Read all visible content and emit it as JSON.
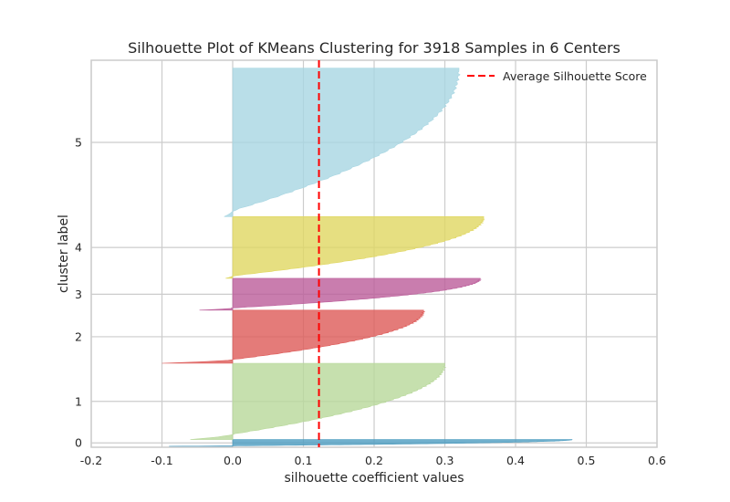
{
  "chart_data": {
    "type": "area",
    "title": "Silhouette Plot of KMeans Clustering for 3918 Samples in 6 Centers",
    "xlabel": "silhouette coefficient values",
    "ylabel": "cluster label",
    "xlim": [
      -0.2,
      0.6
    ],
    "ylim": [
      0,
      4010
    ],
    "x_ticks": [
      "-0.2",
      "-0.1",
      "0.0",
      "0.1",
      "0.2",
      "0.3",
      "0.4",
      "0.5",
      "0.6"
    ],
    "x_tick_values": [
      -0.2,
      -0.1,
      0.0,
      0.1,
      0.2,
      0.3,
      0.4,
      0.5,
      0.6
    ],
    "y_ticks": [
      "0",
      "1",
      "2",
      "3",
      "4",
      "5"
    ],
    "grid": true,
    "legend_position": "top-right",
    "average_silhouette_score": 0.122,
    "average_line_label": "Average Silhouette Score",
    "average_line_color": "#ff0000",
    "clusters": [
      {
        "label": "0",
        "color": "#4c9cc0",
        "y_lower": 10,
        "y_upper": 80,
        "min": -0.09,
        "max": 0.48
      },
      {
        "label": "1",
        "color": "#b8d89a",
        "y_lower": 80,
        "y_upper": 870,
        "min": -0.06,
        "max": 0.3
      },
      {
        "label": "2",
        "color": "#dd5a58",
        "y_lower": 870,
        "y_upper": 1420,
        "min": -0.1,
        "max": 0.27
      },
      {
        "label": "3",
        "color": "#bb5d9a",
        "y_lower": 1420,
        "y_upper": 1750,
        "min": -0.047,
        "max": 0.35
      },
      {
        "label": "4",
        "color": "#e0d761",
        "y_lower": 1750,
        "y_upper": 2390,
        "min": -0.01,
        "max": 0.355
      },
      {
        "label": "5",
        "color": "#a8d6e2",
        "y_lower": 2390,
        "y_upper": 3928,
        "min": -0.012,
        "max": 0.32
      }
    ]
  }
}
